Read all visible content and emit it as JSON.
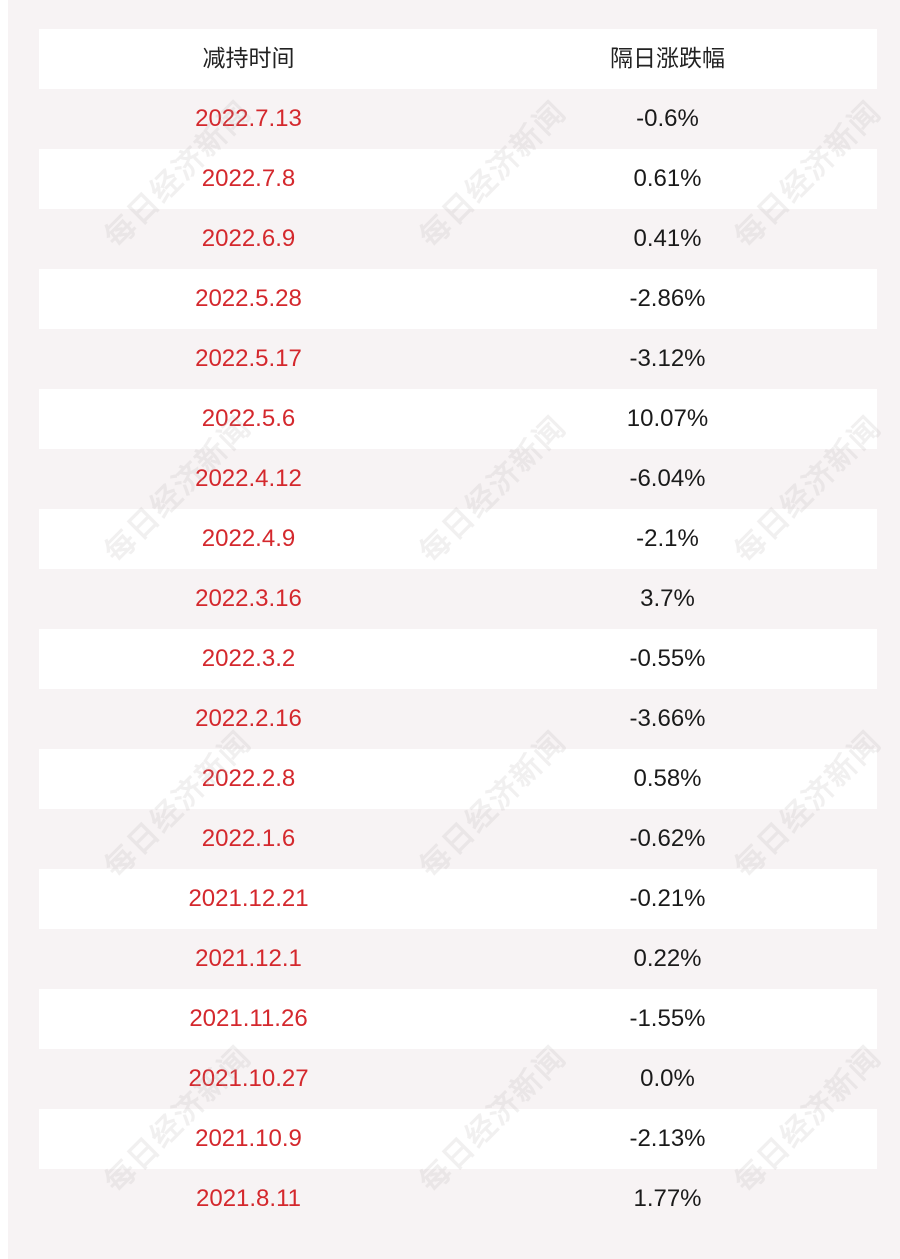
{
  "table": {
    "headers": {
      "date": "减持时间",
      "change": "隔日涨跌幅"
    },
    "rows": [
      {
        "date": "2022.7.13",
        "change": "-0.6%"
      },
      {
        "date": "2022.7.8",
        "change": "0.61%"
      },
      {
        "date": "2022.6.9",
        "change": "0.41%"
      },
      {
        "date": "2022.5.28",
        "change": "-2.86%"
      },
      {
        "date": "2022.5.17",
        "change": "-3.12%"
      },
      {
        "date": "2022.5.6",
        "change": "10.07%"
      },
      {
        "date": "2022.4.12",
        "change": "-6.04%"
      },
      {
        "date": "2022.4.9",
        "change": "-2.1%"
      },
      {
        "date": "2022.3.16",
        "change": "3.7%"
      },
      {
        "date": "2022.3.2",
        "change": "-0.55%"
      },
      {
        "date": "2022.2.16",
        "change": "-3.66%"
      },
      {
        "date": "2022.2.8",
        "change": "0.58%"
      },
      {
        "date": "2022.1.6",
        "change": "-0.62%"
      },
      {
        "date": "2021.12.21",
        "change": "-0.21%"
      },
      {
        "date": "2021.12.1",
        "change": "0.22%"
      },
      {
        "date": "2021.11.26",
        "change": "-1.55%"
      },
      {
        "date": "2021.10.27",
        "change": "0.0%"
      },
      {
        "date": "2021.10.9",
        "change": "-2.13%"
      },
      {
        "date": "2021.8.11",
        "change": "1.77%"
      }
    ]
  },
  "watermark": {
    "text": "每日经济新闻"
  },
  "colors": {
    "date": "#d4282d",
    "change": "#1a1a1a",
    "stripe": "#f7f3f4"
  }
}
